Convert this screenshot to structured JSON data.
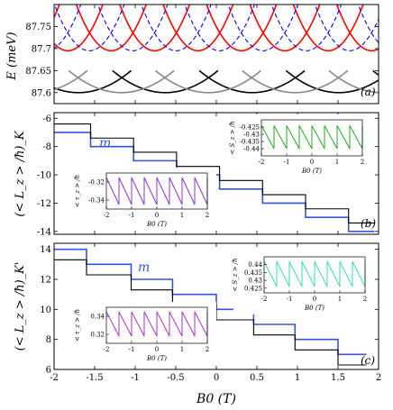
{
  "chart_data": [
    {
      "panel_tag": "(a)",
      "type": "line",
      "ylabel": "E (meV)",
      "xlim": [
        -2,
        2
      ],
      "ylim": [
        87.575,
        87.8
      ],
      "yticks": [
        87.6,
        87.65,
        87.7,
        87.75
      ],
      "ytick_labels": [
        "87.6",
        "87.65",
        "87.7",
        "87.75"
      ],
      "series": [
        {
          "style": "solid",
          "color": "#000000",
          "min": 87.6,
          "period": 1.07,
          "offset": -1.7,
          "height": 0.05,
          "width": 1.3
        },
        {
          "style": "solid",
          "color": "#888888",
          "min": 87.6,
          "period": 1.07,
          "offset": -1.17,
          "height": 0.05,
          "width": 1.3
        },
        {
          "style": "solid",
          "color": "#ff0000",
          "min": 87.695,
          "period": 0.535,
          "offset": -1.83,
          "height": 0.115,
          "width": 0.9
        },
        {
          "style": "dashed",
          "color": "#0000ff",
          "min": 87.695,
          "period": 0.535,
          "offset": -1.565,
          "height": 0.115,
          "width": 0.9
        }
      ]
    },
    {
      "panel_tag": "(b)",
      "type": "line",
      "ylabel": "(< L_z > /ħ)_K",
      "xlim": [
        -2,
        2
      ],
      "ylim": [
        -14.2,
        -5.6
      ],
      "yticks": [
        -6,
        -8,
        -10,
        -12,
        -14
      ],
      "ytick_labels": [
        "-6",
        "-8",
        "-10",
        "-12",
        "-14"
      ],
      "step_label": "m",
      "series": [
        {
          "name": "m",
          "color": "#3355dd",
          "steps_x": [
            -1.55,
            -1.02,
            -0.49,
            0.04,
            0.57,
            1.1,
            1.63
          ],
          "start": -7,
          "step": -1,
          "end_x": 1.95
        },
        {
          "color": "#000000",
          "steps_x": [
            -1.55,
            -1.02,
            -0.49,
            0.04,
            0.57,
            1.1,
            1.63
          ],
          "start": -6.4,
          "step": -1,
          "end_x": 1.95
        }
      ],
      "insets": [
        {
          "type": "sawtooth",
          "color": "#8833dd",
          "ylabel": "< τ_z > /ħ",
          "xlabel": "B0 (T)",
          "xlim": [
            -2,
            2
          ],
          "ylim": [
            -0.35,
            -0.31
          ],
          "yticks": [
            -0.32,
            -0.34
          ],
          "ytick_labels": [
            "-0.32",
            "-0.34"
          ],
          "xticks": [
            -2,
            -1,
            0,
            1,
            2
          ],
          "xtick_labels": [
            "-2",
            "-1",
            "0",
            "1",
            "2"
          ],
          "low": -0.345,
          "high": -0.315,
          "teeth": 8
        },
        {
          "type": "sawtooth",
          "color": "#22aa22",
          "ylabel": "< S_z > /ħ",
          "xlabel": "B0 (T)",
          "xlim": [
            -2,
            2
          ],
          "ylim": [
            -0.445,
            -0.42
          ],
          "yticks": [
            -0.425,
            -0.43,
            -0.435,
            -0.44
          ],
          "ytick_labels": [
            "-0.425",
            "-0.43",
            "-0.435",
            "-0.44"
          ],
          "xticks": [
            -2,
            -1,
            0,
            1,
            2
          ],
          "xtick_labels": [
            "-2",
            "-1",
            "0",
            "1",
            "2"
          ],
          "low": -0.44,
          "high": -0.424,
          "teeth": 8
        }
      ]
    },
    {
      "panel_tag": "(c)",
      "type": "line",
      "ylabel": "(< L_z > /ħ)_K'",
      "xlabel": "B0 (T)",
      "xlim": [
        -2,
        2
      ],
      "ylim": [
        6,
        14.4
      ],
      "xticks": [
        -2,
        -1.5,
        -1,
        -0.5,
        0,
        0.5,
        1,
        1.5,
        2
      ],
      "xtick_labels": [
        "-2",
        "-1.5",
        "-1",
        "-0.5",
        "0",
        "0.5",
        "1",
        "1.5",
        "2"
      ],
      "yticks": [
        6,
        8,
        10,
        12,
        14
      ],
      "ytick_labels": [
        "6",
        "8",
        "10",
        "12",
        "14"
      ],
      "step_label": "m",
      "series": [
        {
          "name": "m",
          "color": "#3355dd",
          "steps_x": [
            -1.6,
            -1.05,
            -0.54,
            0.0,
            0.46,
            0.97,
            1.5
          ],
          "start": 14,
          "step": -1,
          "end_x": 1.85
        },
        {
          "color": "#000000",
          "steps_x": [
            -1.6,
            -1.05,
            -0.54,
            0.0,
            0.46,
            0.97,
            1.5
          ],
          "start": 13.3,
          "step": -1,
          "end_x": 1.85
        }
      ],
      "insets": [
        {
          "type": "sawtooth",
          "color": "#aa33cc",
          "ylabel": "< τ_z > /ħ",
          "xlabel": "B0 (T)",
          "xlim": [
            -2,
            2
          ],
          "ylim": [
            0.31,
            0.35
          ],
          "yticks": [
            0.34,
            0.32
          ],
          "ytick_labels": [
            "0.34",
            "0.32"
          ],
          "xticks": [
            -2,
            -1,
            0,
            1,
            2
          ],
          "xtick_labels": [
            "-2",
            "-1",
            "0",
            "1",
            "2"
          ],
          "low": 0.318,
          "high": 0.345,
          "teeth": 8
        },
        {
          "type": "sawtooth",
          "color": "#33ddaa",
          "ylabel": "< S_z > /ħ",
          "xlabel": "B0 (T)",
          "xlim": [
            -2,
            2
          ],
          "ylim": [
            0.422,
            0.445
          ],
          "yticks": [
            0.44,
            0.435,
            0.43,
            0.425
          ],
          "ytick_labels": [
            "0.44",
            "0.435",
            "0.43",
            "0.425"
          ],
          "xticks": [
            -2,
            -1,
            0,
            1,
            2
          ],
          "xtick_labels": [
            "-2",
            "-1",
            "0",
            "1",
            "2"
          ],
          "low": 0.426,
          "high": 0.442,
          "teeth": 8
        }
      ]
    }
  ]
}
